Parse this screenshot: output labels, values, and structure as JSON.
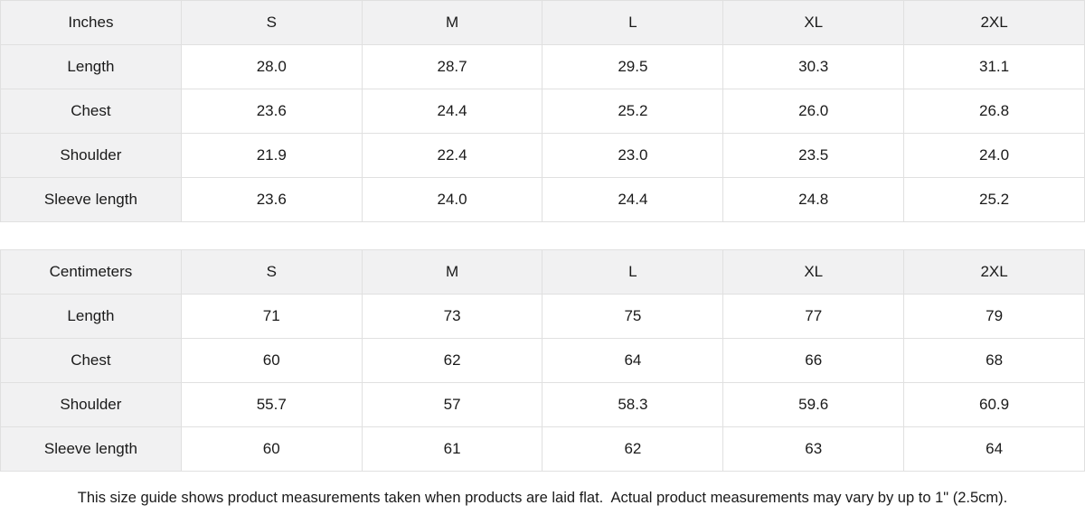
{
  "theme": {
    "page_bg": "#ffffff",
    "header_cell_bg": "#f1f1f2",
    "border_color": "#e0e0e0",
    "text_color": "#1a1a1a"
  },
  "size_guide": {
    "tables": [
      {
        "id": "inches",
        "unit_label": "Inches",
        "size_columns": [
          "S",
          "M",
          "L",
          "XL",
          "2XL"
        ],
        "rows": [
          {
            "label": "Length",
            "values": [
              "28.0",
              "28.7",
              "29.5",
              "30.3",
              "31.1"
            ]
          },
          {
            "label": "Chest",
            "values": [
              "23.6",
              "24.4",
              "25.2",
              "26.0",
              "26.8"
            ]
          },
          {
            "label": "Shoulder",
            "values": [
              "21.9",
              "22.4",
              "23.0",
              "23.5",
              "24.0"
            ]
          },
          {
            "label": "Sleeve length",
            "values": [
              "23.6",
              "24.0",
              "24.4",
              "24.8",
              "25.2"
            ]
          }
        ]
      },
      {
        "id": "centimeters",
        "unit_label": "Centimeters",
        "size_columns": [
          "S",
          "M",
          "L",
          "XL",
          "2XL"
        ],
        "rows": [
          {
            "label": "Length",
            "values": [
              "71",
              "73",
              "75",
              "77",
              "79"
            ]
          },
          {
            "label": "Chest",
            "values": [
              "60",
              "62",
              "64",
              "66",
              "68"
            ]
          },
          {
            "label": "Shoulder",
            "values": [
              "55.7",
              "57",
              "58.3",
              "59.6",
              "60.9"
            ]
          },
          {
            "label": "Sleeve length",
            "values": [
              "60",
              "61",
              "62",
              "63",
              "64"
            ]
          }
        ]
      }
    ],
    "footer_note": "This size guide shows product measurements taken when products are laid flat.  Actual product measurements may vary by up to 1\" (2.5cm)."
  },
  "chart_data": [
    {
      "type": "table",
      "title": "Inches",
      "categories": [
        "S",
        "M",
        "L",
        "XL",
        "2XL"
      ],
      "series": [
        {
          "name": "Length",
          "values": [
            28.0,
            28.7,
            29.5,
            30.3,
            31.1
          ]
        },
        {
          "name": "Chest",
          "values": [
            23.6,
            24.4,
            25.2,
            26.0,
            26.8
          ]
        },
        {
          "name": "Shoulder",
          "values": [
            21.9,
            22.4,
            23.0,
            23.5,
            24.0
          ]
        },
        {
          "name": "Sleeve length",
          "values": [
            23.6,
            24.0,
            24.4,
            24.8,
            25.2
          ]
        }
      ]
    },
    {
      "type": "table",
      "title": "Centimeters",
      "categories": [
        "S",
        "M",
        "L",
        "XL",
        "2XL"
      ],
      "series": [
        {
          "name": "Length",
          "values": [
            71,
            73,
            75,
            77,
            79
          ]
        },
        {
          "name": "Chest",
          "values": [
            60,
            62,
            64,
            66,
            68
          ]
        },
        {
          "name": "Shoulder",
          "values": [
            55.7,
            57,
            58.3,
            59.6,
            60.9
          ]
        },
        {
          "name": "Sleeve length",
          "values": [
            60,
            61,
            62,
            63,
            64
          ]
        }
      ]
    }
  ]
}
